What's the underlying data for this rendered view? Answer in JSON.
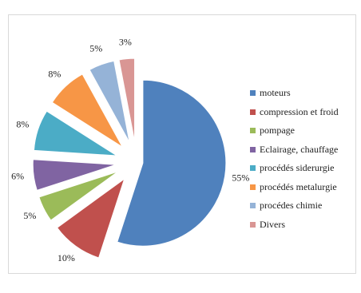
{
  "chart_data": {
    "type": "pie",
    "title": "",
    "slices": [
      {
        "label": "moteurs",
        "value": 55,
        "value_label": "55%",
        "color": "#4f81bd"
      },
      {
        "label": "compression et froid",
        "value": 10,
        "value_label": "10%",
        "color": "#c0504d"
      },
      {
        "label": "pompage",
        "value": 5,
        "value_label": "5%",
        "color": "#9bbb59"
      },
      {
        "label": "Eclairage, chauffage",
        "value": 6,
        "value_label": "6%",
        "color": "#8064a2"
      },
      {
        "label": "procédés siderurgie",
        "value": 8,
        "value_label": "8%",
        "color": "#4bacc6"
      },
      {
        "label": "procédés metalurgie",
        "value": 8,
        "value_label": "8%",
        "color": "#f79646"
      },
      {
        "label": "procédes chimie",
        "value": 5,
        "value_label": "5%",
        "color": "#95b3d7"
      },
      {
        "label": "Divers",
        "value": 3,
        "value_label": "3%",
        "color": "#d99694"
      }
    ],
    "exploded": true,
    "legend_position": "right"
  }
}
